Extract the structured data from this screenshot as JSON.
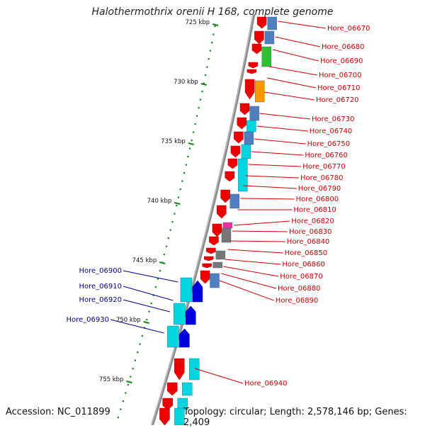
{
  "title": "Halothermothrix orenii H 168, complete genome",
  "footer": {
    "accession": "Accession: NC_011899",
    "summary": "Topology: circular; Length: 2,578,146 bp; Genes: 2,409"
  },
  "ticks": [
    {
      "label": "725 kbp",
      "kbp": 725
    },
    {
      "label": "730 kbp",
      "kbp": 730
    },
    {
      "label": "735 kbp",
      "kbp": 735
    },
    {
      "label": "740 kbp",
      "kbp": 740
    },
    {
      "label": "745 kbp",
      "kbp": 745
    },
    {
      "label": "750 kbp",
      "kbp": 750
    },
    {
      "label": "755 kbp",
      "kbp": 755
    }
  ],
  "genes_right": [
    "Hore_06670",
    "Hore_06680",
    "Hore_06690",
    "Hore_06700",
    "Hore_06710",
    "Hore_06720",
    "Hore_06730",
    "Hore_06740",
    "Hore_06750",
    "Hore_06760",
    "Hore_06770",
    "Hore_06780",
    "Hore_06790",
    "Hore_06800",
    "Hore_06810",
    "Hore_06820",
    "Hore_06830",
    "Hore_06840",
    "Hore_06850",
    "Hore_06860",
    "Hore_06870",
    "Hore_06880",
    "Hore_06890",
    "Hore_06940"
  ],
  "genes_left": [
    "Hore_06900",
    "Hore_06910",
    "Hore_06920",
    "Hore_06930"
  ],
  "colors": {
    "red_label": "#cc0000",
    "blue_label": "#00008b",
    "gene_red": "#ee0000",
    "gene_blue": "#0000dd",
    "cyan": "#00d5e0",
    "steel": "#4f7fbf",
    "green": "#30c030",
    "orange": "#ff9900",
    "magenta": "#ee30a0",
    "gray": "#777777",
    "backbone": "#8a8a8a",
    "tick_green": "#118811"
  }
}
